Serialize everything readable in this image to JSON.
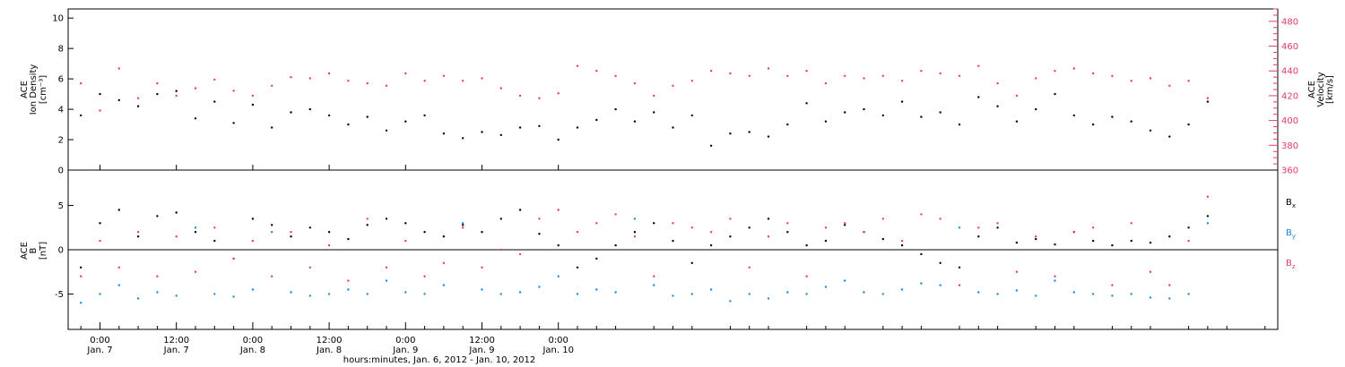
{
  "chart_data": [
    {
      "type": "scatter",
      "panel": "top",
      "ylabel_left": [
        "ACE",
        "Ion Density",
        "[cm⁻³]"
      ],
      "ylabel_right": [
        "ACE",
        "Velocity",
        "[km/s]"
      ],
      "left_ylim": [
        0,
        10.6
      ],
      "left_ticks": [
        0,
        2,
        4,
        6,
        8,
        10
      ],
      "right_ylim": [
        360,
        490
      ],
      "right_ticks": [
        360,
        380,
        400,
        420,
        440,
        460,
        480
      ],
      "series": [
        {
          "name": "Density",
          "color": "#000000",
          "axis": "left",
          "x": [
            -3,
            0,
            3,
            6,
            9,
            12,
            15,
            18,
            21,
            24,
            27,
            30,
            33,
            36,
            39,
            42,
            45,
            48,
            51,
            54,
            57,
            60,
            63,
            66,
            69,
            72,
            75,
            78,
            81,
            84,
            87,
            90,
            93,
            96,
            99,
            102,
            105,
            108,
            111,
            114,
            117,
            120,
            123,
            126,
            129,
            132,
            135,
            138,
            141,
            144,
            147,
            150,
            153,
            156,
            159,
            162,
            165,
            168,
            171,
            174
          ],
          "y": [
            3.6,
            5.0,
            4.6,
            4.2,
            5.0,
            5.2,
            3.4,
            4.5,
            3.1,
            4.3,
            2.8,
            3.8,
            4.0,
            3.6,
            3.0,
            3.5,
            2.6,
            3.2,
            3.6,
            2.4,
            2.1,
            2.5,
            2.3,
            2.8,
            2.9,
            2.0,
            2.8,
            3.3,
            4.0,
            3.2,
            3.8,
            2.8,
            3.6,
            1.6,
            2.4,
            2.5,
            2.2,
            3.0,
            4.4,
            3.2,
            3.8,
            4.0,
            3.6,
            4.5,
            3.5,
            3.8,
            3.0,
            4.8,
            4.2,
            3.2,
            4.0,
            5.0,
            3.6,
            3.0,
            3.5,
            3.2,
            2.6,
            2.2,
            3.0,
            4.5
          ]
        },
        {
          "name": "Velocity",
          "color": "#e8396a",
          "axis": "right",
          "x": [
            -3,
            0,
            3,
            6,
            9,
            12,
            15,
            18,
            21,
            24,
            27,
            30,
            33,
            36,
            39,
            42,
            45,
            48,
            51,
            54,
            57,
            60,
            63,
            66,
            69,
            72,
            75,
            78,
            81,
            84,
            87,
            90,
            93,
            96,
            99,
            102,
            105,
            108,
            111,
            114,
            117,
            120,
            123,
            126,
            129,
            132,
            135,
            138,
            141,
            144,
            147,
            150,
            153,
            156,
            159,
            162,
            165,
            168,
            171,
            174
          ],
          "y": [
            430,
            408,
            442,
            418,
            430,
            420,
            426,
            433,
            424,
            420,
            428,
            435,
            434,
            438,
            432,
            430,
            428,
            438,
            432,
            436,
            432,
            434,
            426,
            420,
            418,
            422,
            444,
            440,
            436,
            430,
            420,
            428,
            432,
            440,
            438,
            436,
            442,
            436,
            440,
            430,
            436,
            434,
            436,
            432,
            440,
            438,
            436,
            444,
            430,
            420,
            434,
            440,
            442,
            438,
            436,
            432,
            434,
            428,
            432,
            418
          ]
        }
      ]
    },
    {
      "type": "scatter",
      "panel": "bottom",
      "ylabel_left": [
        "ACE",
        "B",
        "[nT]"
      ],
      "ylim": [
        -9,
        9
      ],
      "yticks": [
        -5,
        0,
        5
      ],
      "zero_line": true,
      "legend_position": "right",
      "series": [
        {
          "name": "Bx",
          "color": "#000000",
          "x": [
            -3,
            0,
            3,
            6,
            9,
            12,
            15,
            18,
            21,
            24,
            27,
            30,
            33,
            36,
            39,
            42,
            45,
            48,
            51,
            54,
            57,
            60,
            63,
            66,
            69,
            72,
            75,
            78,
            81,
            84,
            87,
            90,
            93,
            96,
            99,
            102,
            105,
            108,
            111,
            114,
            117,
            120,
            123,
            126,
            129,
            132,
            135,
            138,
            141,
            144,
            147,
            150,
            153,
            156,
            159,
            162,
            165,
            168,
            171,
            174
          ],
          "y": [
            -2.0,
            3.0,
            4.5,
            1.5,
            3.8,
            4.2,
            2.0,
            1.0,
            -1.0,
            3.5,
            2.8,
            1.5,
            2.5,
            2.0,
            1.2,
            2.8,
            3.5,
            3.0,
            2.0,
            1.5,
            2.8,
            2.0,
            3.5,
            4.5,
            1.8,
            0.5,
            -2.0,
            -1.0,
            0.5,
            2.0,
            3.0,
            1.0,
            -1.5,
            0.5,
            1.5,
            2.5,
            3.5,
            2.0,
            0.5,
            1.0,
            2.8,
            2.0,
            1.2,
            0.5,
            -0.5,
            -1.5,
            -2.0,
            1.5,
            2.5,
            0.8,
            1.2,
            0.6,
            2.0,
            1.0,
            0.5,
            1.0,
            0.8,
            1.5,
            2.5,
            3.8
          ]
        },
        {
          "name": "By",
          "color": "#1a86dc",
          "x": [
            -3,
            0,
            3,
            6,
            9,
            12,
            15,
            18,
            21,
            24,
            27,
            30,
            33,
            36,
            39,
            42,
            45,
            48,
            51,
            54,
            57,
            60,
            63,
            66,
            69,
            72,
            75,
            78,
            81,
            84,
            87,
            90,
            93,
            96,
            99,
            102,
            105,
            108,
            111,
            114,
            117,
            120,
            123,
            126,
            129,
            132,
            135,
            138,
            141,
            144,
            147,
            150,
            153,
            156,
            159,
            162,
            165,
            168,
            171,
            174
          ],
          "y": [
            -6.0,
            -5.0,
            -4.0,
            -5.5,
            -4.8,
            -5.2,
            2.5,
            -5.0,
            -5.3,
            -4.5,
            2.0,
            -4.8,
            -5.2,
            -5.0,
            -4.5,
            -5.0,
            -3.5,
            -4.8,
            -5.0,
            -4.0,
            3.0,
            -4.5,
            -5.0,
            -4.8,
            -4.2,
            -3.0,
            -5.0,
            -4.5,
            -4.8,
            3.5,
            -4.0,
            -5.2,
            -5.0,
            -4.5,
            -5.8,
            -5.0,
            -5.5,
            -4.8,
            -5.0,
            -4.2,
            -3.5,
            -4.8,
            -5.0,
            -4.5,
            -3.8,
            -4.0,
            2.5,
            -4.8,
            -5.0,
            -4.6,
            -5.2,
            -3.5,
            -4.8,
            -5.0,
            -5.2,
            -5.0,
            -5.4,
            -5.5,
            -5.0,
            3.0
          ]
        },
        {
          "name": "Bz",
          "color": "#e8396a",
          "x": [
            -3,
            0,
            3,
            6,
            9,
            12,
            15,
            18,
            21,
            24,
            27,
            30,
            33,
            36,
            39,
            42,
            45,
            48,
            51,
            54,
            57,
            60,
            63,
            66,
            69,
            72,
            75,
            78,
            81,
            84,
            87,
            90,
            93,
            96,
            99,
            102,
            105,
            108,
            111,
            114,
            117,
            120,
            123,
            126,
            129,
            132,
            135,
            138,
            141,
            144,
            147,
            150,
            153,
            156,
            159,
            162,
            165,
            168,
            171,
            174
          ],
          "y": [
            -3.0,
            1.0,
            -2.0,
            2.0,
            -3.0,
            1.5,
            -2.5,
            2.5,
            -1.0,
            1.0,
            -3.0,
            2.0,
            -2.0,
            0.5,
            -3.5,
            3.5,
            -2.0,
            1.0,
            -3.0,
            -1.5,
            2.5,
            -2.0,
            0.0,
            -0.5,
            3.5,
            4.5,
            2.0,
            3.0,
            4.0,
            1.5,
            -3.0,
            3.0,
            2.5,
            2.0,
            3.5,
            -2.0,
            1.5,
            3.0,
            -3.0,
            2.5,
            3.0,
            2.0,
            3.5,
            1.0,
            4.0,
            3.5,
            -4.0,
            2.5,
            3.0,
            -2.5,
            1.5,
            -3.0,
            2.0,
            2.5,
            -4.0,
            3.0,
            -2.5,
            -4.0,
            1.0,
            6.0
          ]
        }
      ]
    }
  ],
  "legend": [
    "Bx",
    "By",
    "Bz"
  ],
  "x_axis": {
    "range_hours": [
      -5,
      185
    ],
    "ticks": [
      {
        "hours": 0,
        "time": "0:00",
        "date": "Jan. 7"
      },
      {
        "hours": 12,
        "time": "12:00",
        "date": "Jan. 7"
      },
      {
        "hours": 24,
        "time": "0:00",
        "date": "Jan. 8"
      },
      {
        "hours": 36,
        "time": "12:00",
        "date": "Jan. 8"
      },
      {
        "hours": 48,
        "time": "0:00",
        "date": "Jan. 9"
      },
      {
        "hours": 60,
        "time": "12:00",
        "date": "Jan. 9"
      },
      {
        "hours": 72,
        "time": "0:00",
        "date": "Jan. 10"
      }
    ],
    "xlabel": "hours:minutes, Jan. 6, 2012 - Jan. 10, 2012"
  },
  "colors": {
    "black": "#000000",
    "blue": "#1a86dc",
    "red": "#e8396a"
  }
}
